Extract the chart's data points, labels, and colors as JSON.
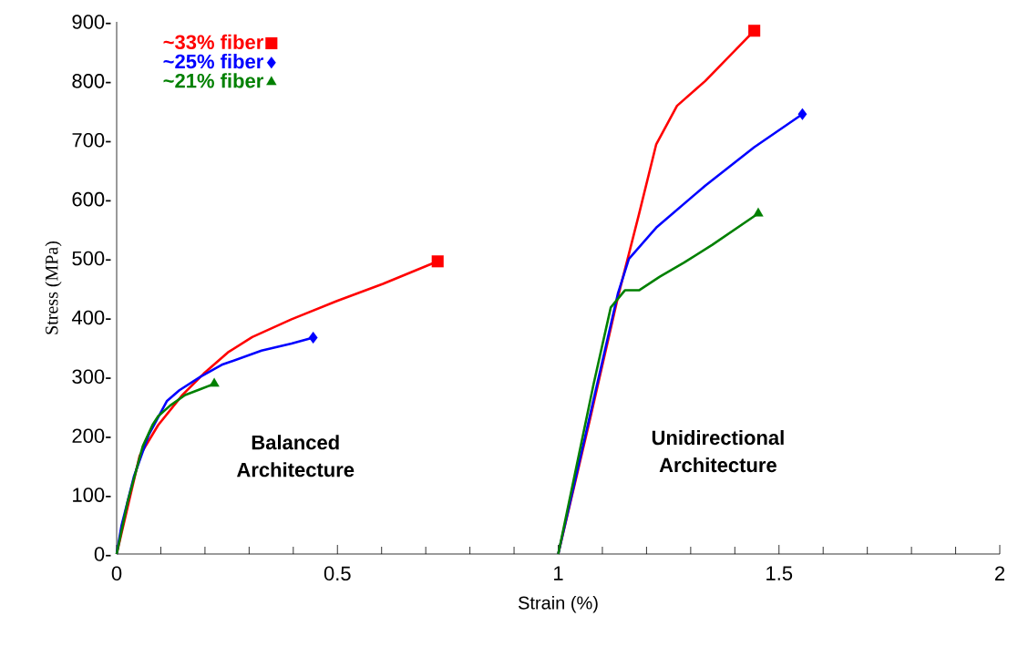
{
  "chart_data": {
    "type": "line",
    "xlabel": "Strain (%)",
    "ylabel": "Stress (MPa)",
    "xlim": [
      0,
      2
    ],
    "ylim": [
      0,
      900
    ],
    "xticks": [
      0,
      0.5,
      1,
      1.5,
      2
    ],
    "yticks": [
      {
        "value": 0,
        "label": "0-"
      },
      {
        "value": 100,
        "label": "100-"
      },
      {
        "value": 200,
        "label": "200-"
      },
      {
        "value": 300,
        "label": "300-"
      },
      {
        "value": 400,
        "label": "400-"
      },
      {
        "value": 500,
        "label": "500-"
      },
      {
        "value": 600,
        "label": "600-"
      },
      {
        "value": 700,
        "label": "700-"
      },
      {
        "value": 800,
        "label": "800-"
      },
      {
        "value": 900,
        "label": "900-"
      }
    ],
    "grid": false,
    "legend": "top left",
    "line_style": "solid",
    "annotations": [
      "Balanced Architecture",
      "Unidirectional Architecture"
    ],
    "series": [
      {
        "color": "#ff0000",
        "x": [
          0,
          0.052,
          0.094,
          0.149,
          0.197,
          0.252,
          0.307,
          0.396,
          0.499,
          0.603,
          0.727
        ],
        "values": [
          0,
          166,
          218,
          269,
          305,
          341,
          367,
          397,
          428,
          457,
          495
        ]
      },
      {
        "color": "#0000ff",
        "x": [
          0,
          0.011,
          0.039,
          0.073,
          0.114,
          0.142,
          0.19,
          0.238,
          0.328,
          0.396,
          0.445
        ],
        "values": [
          0,
          48,
          131,
          202,
          259,
          277,
          300,
          320,
          344,
          356,
          366
        ]
      },
      {
        "color": "#008000",
        "x": [
          0,
          0.025,
          0.059,
          0.081,
          0.094,
          0.121,
          0.155,
          0.19,
          0.221
        ],
        "values": [
          0,
          89,
          182,
          218,
          233,
          251,
          269,
          279,
          288
        ]
      },
      {
        "color": "#ff0000",
        "x": [
          1,
          1.072,
          1.135,
          1.183,
          1.222,
          1.269,
          1.333,
          1.444
        ],
        "values": [
          0,
          228,
          434,
          575,
          693,
          758,
          800,
          885
        ]
      },
      {
        "color": "#0000ff",
        "x": [
          1,
          1.135,
          1.16,
          1.222,
          1.333,
          1.444,
          1.553
        ],
        "values": [
          0,
          440,
          499,
          552,
          623,
          688,
          744
        ]
      },
      {
        "color": "#008000",
        "x": [
          1,
          1.08,
          1.119,
          1.151,
          1.183,
          1.23,
          1.285,
          1.349,
          1.453
        ],
        "values": [
          0,
          287,
          417,
          446,
          446,
          469,
          493,
          523,
          576
        ]
      },
      {
        "name": "~33% fiber",
        "type": "scatter",
        "color": "#ff0000",
        "marker": "square",
        "x": [
          0.727,
          1.444
        ],
        "values": [
          495,
          885
        ]
      },
      {
        "name": "~25% fiber",
        "type": "scatter",
        "color": "#0000ff",
        "marker": "diamond",
        "x": [
          0.445,
          1.553
        ],
        "values": [
          366,
          744
        ]
      },
      {
        "name": "~21% fiber",
        "type": "scatter",
        "color": "#008000",
        "marker": "triangle",
        "x": [
          0.221,
          1.453
        ],
        "values": [
          288,
          576
        ]
      }
    ]
  }
}
